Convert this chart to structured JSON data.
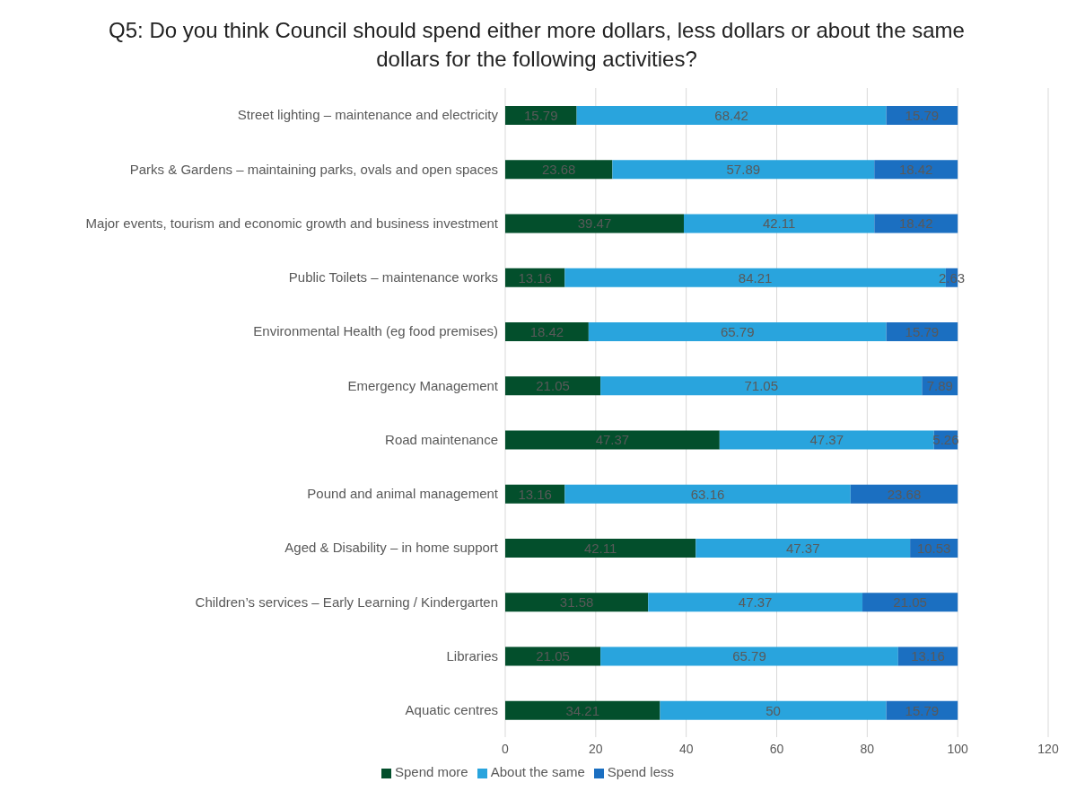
{
  "chart_data": {
    "type": "bar",
    "orientation": "horizontal",
    "stacked": true,
    "title": "Q5: Do you think Council should spend either more dollars, less dollars or about the same dollars for the following activities?",
    "categories": [
      "Street lighting – maintenance and electricity",
      "Parks & Gardens – maintaining parks, ovals and open spaces",
      "Major events, tourism and economic growth and business investment",
      "Public Toilets – maintenance works",
      "Environmental Health (eg food premises)",
      "Emergency Management",
      "Road maintenance",
      "Pound and animal management",
      "Aged & Disability – in home support",
      "Children’s services – Early Learning / Kindergarten",
      "Libraries",
      "Aquatic centres"
    ],
    "series": [
      {
        "name": "Spend more",
        "color": "#034f2c",
        "values": [
          15.79,
          23.68,
          39.47,
          13.16,
          18.42,
          21.05,
          47.37,
          13.16,
          42.11,
          31.58,
          21.05,
          34.21
        ]
      },
      {
        "name": "About the same",
        "color": "#29a4dd",
        "values": [
          68.42,
          57.89,
          42.11,
          84.21,
          65.79,
          71.05,
          47.37,
          63.16,
          47.37,
          47.37,
          65.79,
          50
        ]
      },
      {
        "name": "Spend less",
        "color": "#1b6fc1",
        "values": [
          15.79,
          18.42,
          18.42,
          2.63,
          15.79,
          7.89,
          5.26,
          23.68,
          10.53,
          21.05,
          13.16,
          15.79
        ]
      }
    ],
    "xlim": [
      0,
      120
    ],
    "xticks": [
      0,
      20,
      40,
      60,
      80,
      100,
      120
    ],
    "grid": "x",
    "legend": "bottom",
    "data_labels": true
  }
}
